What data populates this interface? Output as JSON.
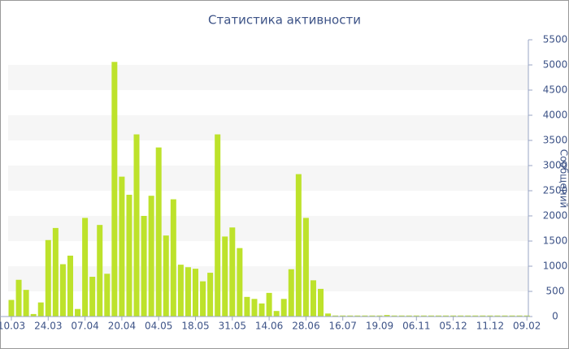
{
  "chart_data": {
    "type": "bar",
    "title": "Статистика активности",
    "y_label": "Сообщений",
    "categories": [
      "10.03",
      null,
      null,
      null,
      null,
      "24.03",
      null,
      null,
      null,
      null,
      "07.04",
      null,
      null,
      null,
      null,
      "20.04",
      null,
      null,
      null,
      null,
      "04.05",
      null,
      null,
      null,
      null,
      "18.05",
      null,
      null,
      null,
      null,
      "31.05",
      null,
      null,
      null,
      null,
      "14.06",
      null,
      null,
      null,
      null,
      "28.06",
      null,
      null,
      null,
      null,
      "16.07",
      null,
      null,
      null,
      null,
      "19.09",
      null,
      null,
      null,
      null,
      "06.11",
      null,
      null,
      null,
      null,
      "05.12",
      null,
      null,
      null,
      null,
      "11.12",
      null,
      null,
      null,
      null,
      "09.02"
    ],
    "values": [
      330,
      730,
      530,
      50,
      280,
      1520,
      1760,
      1040,
      1210,
      150,
      1960,
      790,
      1820,
      850,
      5060,
      2780,
      2420,
      3620,
      2000,
      2400,
      3360,
      1610,
      2330,
      1030,
      980,
      950,
      700,
      870,
      3620,
      1590,
      1770,
      1360,
      390,
      350,
      260,
      470,
      110,
      350,
      940,
      2830,
      1960,
      720,
      550,
      60,
      20,
      20,
      20,
      20,
      20,
      20,
      20,
      30,
      20,
      20,
      20,
      20,
      20,
      20,
      20,
      20,
      20,
      20,
      20,
      20,
      20,
      20,
      20,
      20,
      20,
      20,
      20
    ],
    "color": "#bde22b",
    "ylim": [
      0,
      5500
    ],
    "yticks": [
      0,
      500,
      1000,
      1500,
      2000,
      2500,
      3000,
      3500,
      4000,
      4500,
      5000,
      5500
    ],
    "grid": "bands",
    "y_axis_side": "right"
  }
}
